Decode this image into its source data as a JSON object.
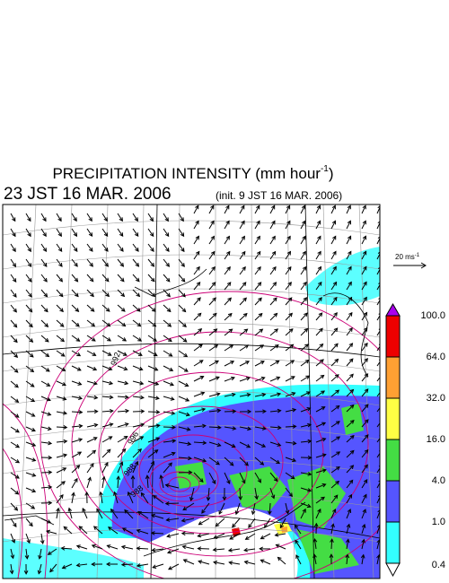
{
  "header": {
    "title": "PRECIPITATION INTENSITY (mm hour",
    "title_superscript": "-1",
    "title_suffix": ")",
    "valid_time": "23 JST 16 MAR. 2006",
    "init_time": "(init. 9 JST 16 MAR. 2006)"
  },
  "wind_scale": {
    "label": "20 ms",
    "superscript": "-1"
  },
  "contour_labels": [
    "992",
    "996",
    "988",
    "988"
  ],
  "legend": {
    "levels": [
      "0.4",
      "1.0",
      "4.0",
      "16.0",
      "32.0",
      "64.0",
      "100.0"
    ],
    "colors": [
      "#ffffff",
      "#33ffff",
      "#5555ff",
      "#44dd44",
      "#ffff44",
      "#ffa033",
      "#ee0000",
      "#aa00ee"
    ]
  }
}
